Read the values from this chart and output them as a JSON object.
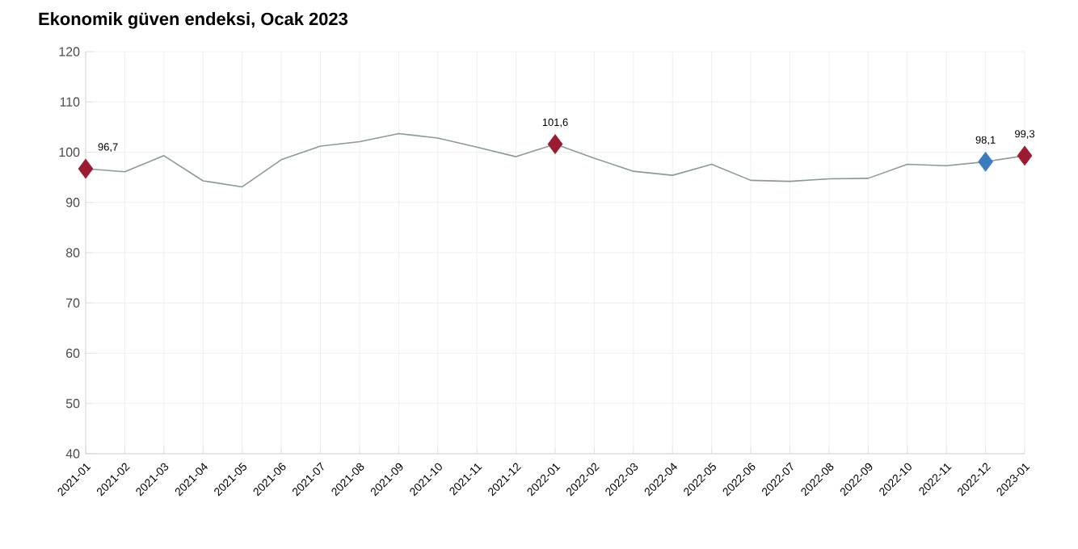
{
  "chart_data": {
    "type": "line",
    "title": "Ekonomik güven endeksi, Ocak 2023",
    "categories": [
      "2021-01",
      "2021-02",
      "2021-03",
      "2021-04",
      "2021-05",
      "2021-06",
      "2021-07",
      "2021-08",
      "2021-09",
      "2021-10",
      "2021-11",
      "2021-12",
      "2022-01",
      "2022-02",
      "2022-03",
      "2022-04",
      "2022-05",
      "2022-06",
      "2022-07",
      "2022-08",
      "2022-09",
      "2022-10",
      "2022-11",
      "2022-12",
      "2023-01"
    ],
    "series": [
      {
        "color": "#8a9a9a",
        "values": [
          96.7,
          96.1,
          99.3,
          94.3,
          93.1,
          98.5,
          101.2,
          102.1,
          103.7,
          102.8,
          101.0,
          99.1,
          101.6,
          98.8,
          96.2,
          95.4,
          97.6,
          94.4,
          94.2,
          94.7,
          94.8,
          97.6,
          97.3,
          98.1,
          99.3
        ]
      },
      {
        "type": "scatter",
        "marker": "diamond",
        "values": [
          96.7,
          null,
          null,
          null,
          null,
          null,
          null,
          null,
          null,
          null,
          null,
          null,
          101.6,
          null,
          null,
          null,
          null,
          null,
          null,
          null,
          null,
          null,
          null,
          98.1,
          99.3
        ],
        "colors": [
          "#9b1b30",
          null,
          null,
          null,
          null,
          null,
          null,
          null,
          null,
          null,
          null,
          null,
          "#9b1b30",
          null,
          null,
          null,
          null,
          null,
          null,
          null,
          null,
          null,
          null,
          "#3a7dbf",
          "#9b1b30"
        ],
        "value_labels": [
          "96,7",
          null,
          null,
          null,
          null,
          null,
          null,
          null,
          null,
          null,
          null,
          null,
          "101,6",
          null,
          null,
          null,
          null,
          null,
          null,
          null,
          null,
          null,
          null,
          "98,1",
          "99,3"
        ]
      }
    ],
    "ylim": [
      40,
      120
    ],
    "yticks": [
      40,
      50,
      60,
      70,
      80,
      90,
      100,
      110,
      120
    ],
    "grid": true
  }
}
